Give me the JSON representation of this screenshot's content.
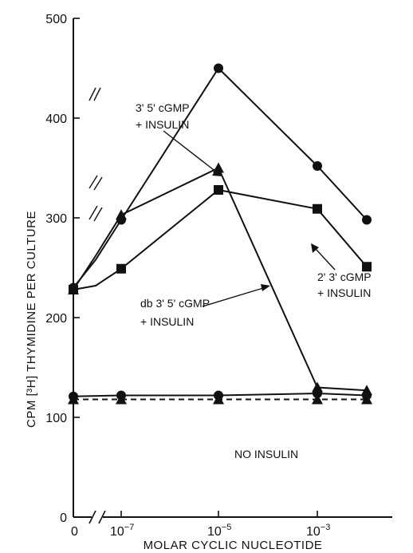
{
  "chart_data": {
    "type": "line",
    "xlabel": "MOLAR CYCLIC NUCLEOTIDE",
    "ylabel": "CPM [³H] THYMIDINE PER CULTURE",
    "ylim": [
      0,
      500
    ],
    "y_ticks": [
      "0",
      "100",
      "200",
      "300",
      "400",
      "500"
    ],
    "x_ticks": [
      {
        "key": "zero",
        "label": "0",
        "exp": ""
      },
      {
        "key": "e7",
        "label": "10",
        "exp": "−7"
      },
      {
        "key": "e5",
        "label": "10",
        "exp": "−5"
      },
      {
        "key": "e3",
        "label": "10",
        "exp": "−3"
      }
    ],
    "x_scale": "log10 with axis break before 10^-7",
    "series": [
      {
        "key": "cgmp35",
        "marker": "circle",
        "dashed": false,
        "points": [
          [
            "zero",
            230
          ],
          [
            "break1",
            258
          ],
          [
            "e7",
            298
          ],
          [
            "e5",
            450
          ],
          [
            "e3",
            352
          ],
          [
            "e2",
            298
          ]
        ]
      },
      {
        "key": "db35",
        "marker": "triangle",
        "dashed": false,
        "points": [
          [
            "zero",
            228
          ],
          [
            "break1",
            262
          ],
          [
            "e7",
            303
          ],
          [
            "e5",
            350
          ],
          [
            "e3",
            130
          ],
          [
            "e2",
            127
          ]
        ]
      },
      {
        "key": "cgmp23",
        "marker": "square",
        "dashed": false,
        "points": [
          [
            "zero",
            228
          ],
          [
            "break1",
            232
          ],
          [
            "e7",
            249
          ],
          [
            "e5",
            328
          ],
          [
            "e3",
            309
          ],
          [
            "e2",
            251
          ]
        ]
      },
      {
        "key": "noins_c",
        "marker": "circle",
        "dashed": false,
        "points": [
          [
            "zero",
            121
          ],
          [
            "e7",
            122
          ],
          [
            "e5",
            122
          ],
          [
            "e3",
            124
          ],
          [
            "e2",
            122
          ]
        ]
      },
      {
        "key": "noins_t",
        "marker": "triangle",
        "dashed": true,
        "points": [
          [
            "zero",
            118
          ],
          [
            "e7",
            118
          ],
          [
            "e5",
            118
          ],
          [
            "e3",
            118
          ],
          [
            "e2",
            118
          ]
        ]
      }
    ],
    "annotations": {
      "cgmp35": [
        "3' 5' cGMP",
        "+ INSULIN"
      ],
      "db35": [
        "db 3' 5' cGMP",
        "+ INSULIN"
      ],
      "cgmp23": [
        "2' 3' cGMP",
        "+ INSULIN"
      ],
      "noins": "NO INSULIN"
    }
  }
}
